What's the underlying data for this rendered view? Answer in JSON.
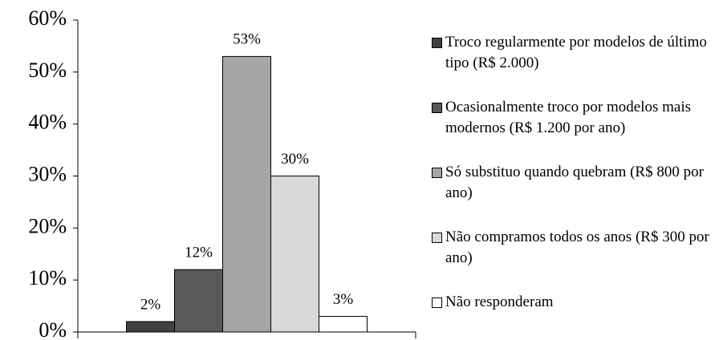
{
  "chart_data": {
    "type": "bar",
    "categories": [
      null
    ],
    "series": [
      {
        "name": "Troco regularmente por modelos de último tipo (R$ 2.000)",
        "color": "#404040",
        "values": [
          2
        ],
        "value_labels": [
          "2%"
        ]
      },
      {
        "name": "Ocasionalmente troco por modelos mais modernos (R$ 1.200 por ano)",
        "color": "#595959",
        "values": [
          12
        ],
        "value_labels": [
          "12%"
        ]
      },
      {
        "name": "Só substituo quando quebram (R$ 800 por ano)",
        "color": "#a6a6a6",
        "values": [
          53
        ],
        "value_labels": [
          "53%"
        ]
      },
      {
        "name": "Não compramos todos os anos (R$ 300 por ano)",
        "color": "#d9d9d9",
        "values": [
          30
        ],
        "value_labels": [
          "30%"
        ]
      },
      {
        "name": "Não responderam",
        "color": "#ffffff",
        "values": [
          3
        ],
        "value_labels": [
          "3%"
        ]
      }
    ],
    "ylim": [
      0,
      60
    ],
    "yticks": [
      {
        "value": 0,
        "label": "0%"
      },
      {
        "value": 10,
        "label": "10%"
      },
      {
        "value": 20,
        "label": "20%"
      },
      {
        "value": 30,
        "label": "30%"
      },
      {
        "value": 40,
        "label": "40%"
      },
      {
        "value": 50,
        "label": "50%"
      },
      {
        "value": 60,
        "label": "60%"
      }
    ],
    "legend": "right"
  }
}
